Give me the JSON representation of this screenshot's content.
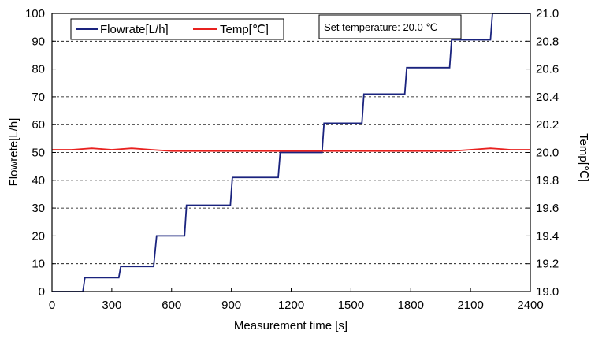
{
  "chart_data": {
    "type": "line",
    "xlabel": "Measurement time [s]",
    "ylabel_left": "Flowrete[L/h]",
    "ylabel_right": "Temp[℃]",
    "xlim": [
      0,
      2400
    ],
    "ylim_left": [
      0,
      100
    ],
    "ylim_right": [
      19.0,
      21.0
    ],
    "x_ticks": [
      0,
      300,
      600,
      900,
      1200,
      1500,
      1800,
      2100,
      2400
    ],
    "x_tick_labels": [
      "0",
      "300",
      "600",
      "900",
      "1200",
      "1500",
      "1800",
      "2100",
      "2400"
    ],
    "y_left_ticks": [
      0,
      10,
      20,
      30,
      40,
      50,
      60,
      70,
      80,
      90,
      100
    ],
    "y_left_tick_labels": [
      "0",
      "10",
      "20",
      "30",
      "40",
      "50",
      "60",
      "70",
      "80",
      "90",
      "100"
    ],
    "y_right_ticks": [
      19.0,
      19.2,
      19.4,
      19.6,
      19.8,
      20.0,
      20.2,
      20.4,
      20.6,
      20.8,
      21.0
    ],
    "y_right_tick_labels": [
      "19.0",
      "19.2",
      "19.4",
      "19.6",
      "19.8",
      "20.0",
      "20.2",
      "20.4",
      "20.6",
      "20.8",
      "21.0"
    ],
    "grid": "horizontal dashed",
    "legend_position": "top-left",
    "annotation": "Set temperature: 20.0 ℃",
    "series": [
      {
        "name": "Flowrate[L/h]",
        "axis": "left",
        "color": "#1a237e",
        "x": [
          0,
          155,
          165,
          335,
          345,
          510,
          525,
          665,
          675,
          895,
          905,
          1135,
          1145,
          1355,
          1365,
          1555,
          1565,
          1770,
          1780,
          1995,
          2005,
          2200,
          2210,
          2400
        ],
        "y": [
          0,
          0,
          5,
          5,
          9,
          9,
          20,
          20,
          31,
          31,
          41,
          41,
          50,
          50,
          60.5,
          60.5,
          71,
          71,
          80.5,
          80.5,
          90.5,
          90.5,
          100,
          100
        ]
      },
      {
        "name": "Temp[℃]",
        "axis": "right",
        "color": "#e8211f",
        "x": [
          0,
          100,
          200,
          300,
          400,
          500,
          600,
          700,
          800,
          900,
          1000,
          1100,
          1200,
          1300,
          1400,
          1500,
          1600,
          1700,
          1800,
          1900,
          2000,
          2100,
          2200,
          2300,
          2400
        ],
        "y": [
          20.02,
          20.02,
          20.03,
          20.02,
          20.03,
          20.02,
          20.01,
          20.01,
          20.01,
          20.01,
          20.01,
          20.01,
          20.01,
          20.01,
          20.01,
          20.01,
          20.01,
          20.01,
          20.01,
          20.01,
          20.01,
          20.02,
          20.03,
          20.02,
          20.02
        ]
      }
    ]
  }
}
